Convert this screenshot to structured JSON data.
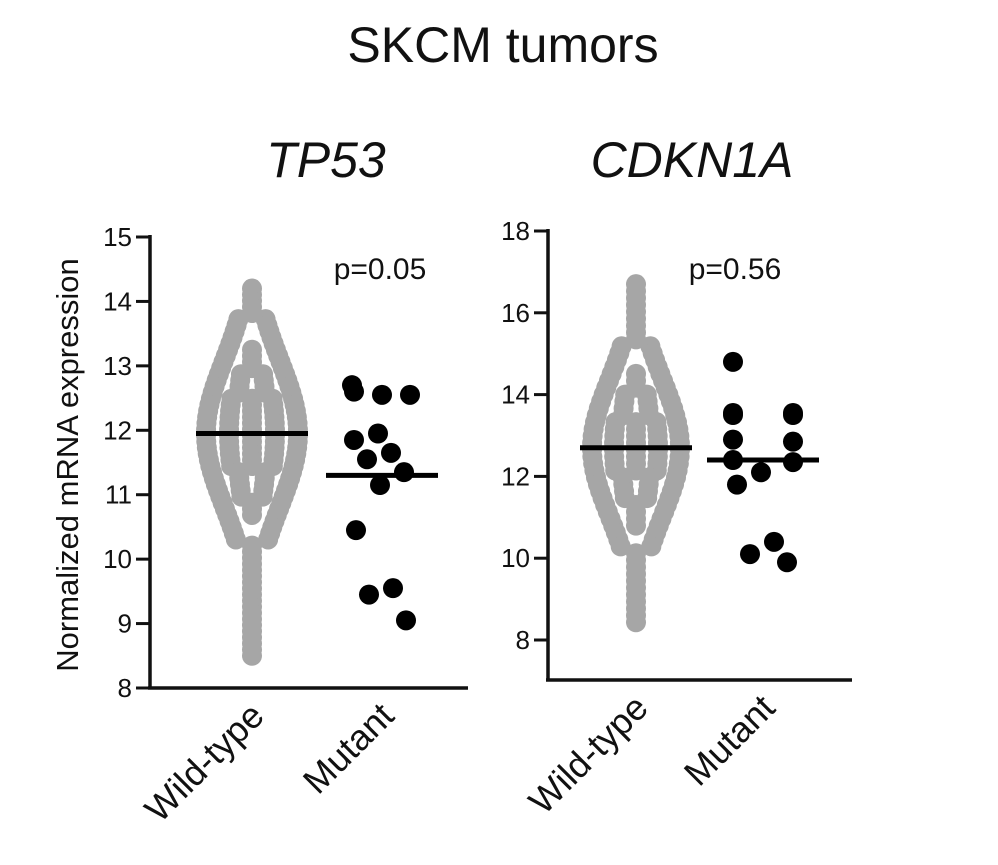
{
  "figure": {
    "title": "SKCM tumors",
    "ylabel": "Normalized mRNA expression"
  },
  "chart_data": [
    {
      "type": "scatter",
      "subtype": "beeswarm dot plot with mean line",
      "title": "TP53",
      "ylabel": "Normalized mRNA expression",
      "ylim": [
        8,
        15
      ],
      "yticks": [
        8,
        9,
        10,
        11,
        12,
        13,
        14,
        15
      ],
      "categories": [
        "Wild-type",
        "Mutant"
      ],
      "annotation": "p=0.05",
      "colors": {
        "Wild-type": "#a6a6a6",
        "Mutant": "#000000"
      },
      "series": [
        {
          "category": "Wild-type",
          "mean": 11.95,
          "range": [
            8.45,
            14.2
          ],
          "values": [
            14.18,
            14.0,
            13.82,
            13.65,
            13.5,
            13.35,
            13.2,
            13.05,
            12.95,
            12.85,
            12.75,
            12.65,
            12.55,
            12.45,
            12.35,
            12.25,
            12.15,
            12.05,
            11.95,
            11.85,
            11.75,
            11.65,
            11.55,
            11.45,
            11.35,
            11.25,
            11.15,
            11.05,
            10.95,
            10.8,
            10.65,
            10.5,
            10.35,
            10.2,
            9.95,
            9.8,
            9.65,
            9.5,
            9.35,
            9.2,
            9.05,
            8.9,
            8.75,
            8.6,
            8.45
          ]
        },
        {
          "category": "Mutant",
          "mean": 11.3,
          "values": [
            12.7,
            12.6,
            12.55,
            12.55,
            11.95,
            11.85,
            11.65,
            11.55,
            11.35,
            11.15,
            10.45,
            9.55,
            9.45,
            9.05
          ]
        }
      ]
    },
    {
      "type": "scatter",
      "subtype": "beeswarm dot plot with mean line",
      "title": "CDKN1A",
      "ylabel": "",
      "ylim": [
        7,
        18
      ],
      "yticks": [
        8,
        10,
        12,
        14,
        16,
        18
      ],
      "categories": [
        "Wild-type",
        "Mutant"
      ],
      "annotation": "p=0.56",
      "colors": {
        "Wild-type": "#a6a6a6",
        "Mutant": "#000000"
      },
      "series": [
        {
          "category": "Wild-type",
          "mean": 12.7,
          "range": [
            8.3,
            16.7
          ],
          "values": [
            16.7,
            16.4,
            16.1,
            15.8,
            15.5,
            15.2,
            14.9,
            14.6,
            14.3,
            14.0,
            13.8,
            13.6,
            13.4,
            13.2,
            13.0,
            12.85,
            12.7,
            12.55,
            12.4,
            12.2,
            12.0,
            11.8,
            11.6,
            11.4,
            11.2,
            11.0,
            10.8,
            10.6,
            10.4,
            10.2,
            10.0,
            9.8,
            9.6,
            9.3,
            9.0,
            8.7,
            8.3
          ]
        },
        {
          "category": "Mutant",
          "mean": 12.4,
          "values": [
            14.8,
            13.55,
            13.55,
            13.5,
            13.5,
            12.9,
            12.85,
            12.4,
            12.35,
            12.1,
            11.8,
            10.4,
            10.1,
            9.9
          ]
        }
      ]
    }
  ]
}
